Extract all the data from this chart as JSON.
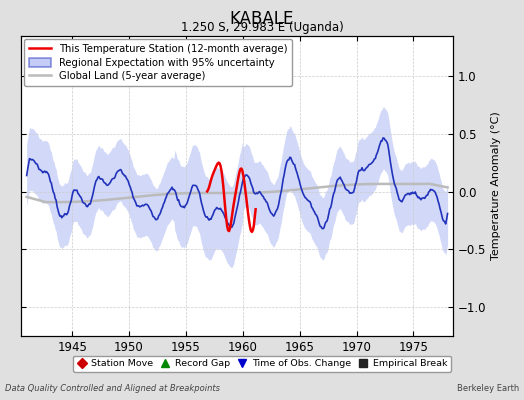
{
  "title": "KABALE",
  "subtitle": "1.250 S, 29.983 E (Uganda)",
  "ylabel": "Temperature Anomaly (°C)",
  "xlim": [
    1940.5,
    1978.5
  ],
  "ylim": [
    -1.25,
    1.35
  ],
  "yticks": [
    -1,
    -0.5,
    0,
    0.5,
    1
  ],
  "xticks": [
    1945,
    1950,
    1955,
    1960,
    1965,
    1970,
    1975
  ],
  "background_color": "#e0e0e0",
  "plot_bg_color": "#ffffff",
  "footer_left": "Data Quality Controlled and Aligned at Breakpoints",
  "footer_right": "Berkeley Earth",
  "legend_main": [
    {
      "label": "This Temperature Station (12-month average)",
      "color": "#ee0000",
      "lw": 1.8
    },
    {
      "label": "Regional Expectation with 95% uncertainty",
      "color": "#2233bb",
      "lw": 1.4
    },
    {
      "label": "Global Land (5-year average)",
      "color": "#aaaaaa",
      "lw": 1.8
    }
  ],
  "legend_bottom": [
    {
      "label": "Station Move",
      "marker": "D",
      "color": "#cc0000"
    },
    {
      "label": "Record Gap",
      "marker": "^",
      "color": "#008800"
    },
    {
      "label": "Time of Obs. Change",
      "marker": "v",
      "color": "#0000cc"
    },
    {
      "label": "Empirical Break",
      "marker": "s",
      "color": "#222222"
    }
  ]
}
